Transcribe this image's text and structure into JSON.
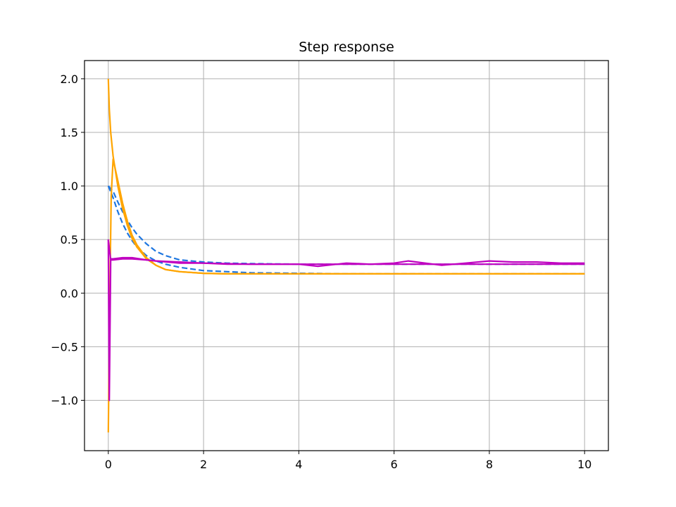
{
  "chart_data": {
    "type": "line",
    "title": "Step response",
    "xlabel": "",
    "ylabel": "",
    "xlim": [
      -0.5,
      10.5
    ],
    "ylim": [
      -1.47,
      2.17
    ],
    "x_ticks": [
      0,
      2,
      4,
      6,
      8,
      10
    ],
    "x_tick_labels": [
      "0",
      "2",
      "4",
      "6",
      "8",
      "10"
    ],
    "y_ticks": [
      -1.0,
      -0.5,
      0.0,
      0.5,
      1.0,
      1.5,
      2.0
    ],
    "y_tick_labels": [
      "−1.0",
      "−0.5",
      "0.0",
      "0.5",
      "1.0",
      "1.5",
      "2.0"
    ],
    "grid": true,
    "legend": "none",
    "series": [
      {
        "style": "dashed",
        "color": "#1f77e0",
        "x": [
          0.0,
          0.1,
          0.2,
          0.3,
          0.4,
          0.5,
          0.6,
          0.8,
          1.0,
          1.2,
          1.5,
          2.0,
          2.5,
          3.0,
          4.0,
          5.0,
          6.0,
          7.0,
          8.0,
          9.0,
          10.0
        ],
        "y": [
          1.0,
          0.89,
          0.76,
          0.65,
          0.56,
          0.49,
          0.43,
          0.35,
          0.3,
          0.27,
          0.24,
          0.21,
          0.2,
          0.19,
          0.185,
          0.18,
          0.18,
          0.18,
          0.18,
          0.18,
          0.18
        ]
      },
      {
        "style": "dashed",
        "color": "#1f77e0",
        "x": [
          0.0,
          0.1,
          0.2,
          0.3,
          0.4,
          0.5,
          0.6,
          0.8,
          1.0,
          1.2,
          1.5,
          2.0,
          2.5,
          3.0,
          4.0,
          5.0,
          6.0,
          7.0,
          8.0,
          9.0,
          10.0
        ],
        "y": [
          1.0,
          0.95,
          0.85,
          0.76,
          0.68,
          0.61,
          0.55,
          0.46,
          0.39,
          0.35,
          0.31,
          0.29,
          0.28,
          0.275,
          0.27,
          0.27,
          0.27,
          0.27,
          0.27,
          0.27,
          0.27
        ]
      },
      {
        "style": "solid",
        "color": "#ffa500",
        "x": [
          0.0,
          0.02,
          0.05,
          0.1,
          0.2,
          0.3,
          0.4,
          0.5,
          0.6,
          0.8,
          1.0,
          1.2,
          1.5,
          2.0,
          2.5,
          3.0,
          4.0,
          5.0,
          6.0,
          7.0,
          8.0,
          9.0,
          10.0
        ],
        "y": [
          2.0,
          1.72,
          1.5,
          1.28,
          1.0,
          0.79,
          0.63,
          0.51,
          0.43,
          0.32,
          0.26,
          0.22,
          0.2,
          0.185,
          0.18,
          0.18,
          0.18,
          0.18,
          0.18,
          0.18,
          0.18,
          0.18,
          0.18
        ]
      },
      {
        "style": "solid",
        "color": "#ffa500",
        "x": [
          0.0,
          0.03,
          0.06,
          0.1,
          0.2,
          0.3,
          0.4,
          0.5,
          0.6,
          0.8,
          1.0,
          1.2,
          1.5,
          2.0,
          2.5,
          3.0,
          4.0,
          5.0,
          6.0,
          7.0,
          8.0,
          9.0,
          10.0
        ],
        "y": [
          -1.3,
          -0.1,
          0.9,
          1.25,
          1.05,
          0.84,
          0.67,
          0.54,
          0.45,
          0.33,
          0.26,
          0.22,
          0.2,
          0.185,
          0.18,
          0.18,
          0.18,
          0.18,
          0.18,
          0.18,
          0.18,
          0.18,
          0.18
        ]
      },
      {
        "style": "solid",
        "color": "#c000c0",
        "x": [
          0.0,
          0.02,
          0.05,
          0.1,
          0.3,
          0.5,
          0.8,
          1.0,
          1.5,
          2.0,
          2.5,
          3.0,
          3.5,
          4.0,
          4.4,
          5.0,
          5.5,
          6.0,
          6.3,
          7.0,
          7.5,
          8.0,
          8.5,
          9.0,
          9.5,
          10.0
        ],
        "y": [
          0.5,
          -1.0,
          0.32,
          0.32,
          0.33,
          0.33,
          0.31,
          0.3,
          0.28,
          0.28,
          0.27,
          0.27,
          0.27,
          0.27,
          0.25,
          0.28,
          0.27,
          0.28,
          0.3,
          0.26,
          0.28,
          0.3,
          0.29,
          0.29,
          0.28,
          0.28
        ]
      },
      {
        "style": "solid",
        "color": "#c000c0",
        "x": [
          0.0,
          0.05,
          0.1,
          0.3,
          0.5,
          0.8,
          1.0,
          1.5,
          2.0,
          3.0,
          4.0,
          5.0,
          6.0,
          7.0,
          8.0,
          9.0,
          10.0
        ],
        "y": [
          0.5,
          0.31,
          0.31,
          0.32,
          0.32,
          0.31,
          0.3,
          0.29,
          0.28,
          0.27,
          0.27,
          0.27,
          0.27,
          0.27,
          0.27,
          0.27,
          0.27
        ]
      }
    ]
  }
}
